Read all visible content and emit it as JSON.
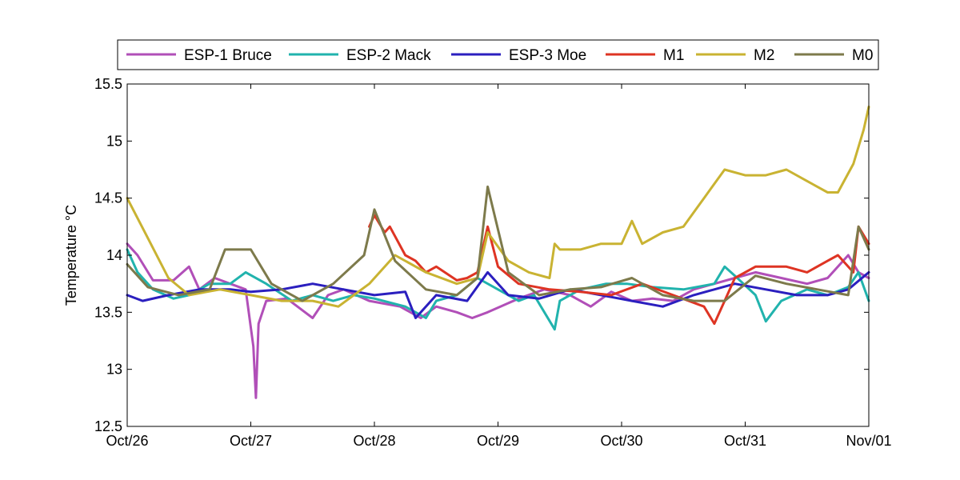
{
  "chart_data": {
    "type": "line",
    "xlabel": "",
    "ylabel": "Temperature °C",
    "ylim": [
      12.5,
      15.5
    ],
    "xlim": [
      "2013-10-26",
      "2013-11-01"
    ],
    "x_ticks": [
      "Oct/26",
      "Oct/27",
      "Oct/28",
      "Oct/29",
      "Oct/30",
      "Oct/31",
      "Nov/01"
    ],
    "y_ticks": [
      "12.5",
      "13",
      "13.5",
      "14",
      "14.5",
      "15",
      "15.5"
    ],
    "grid": false,
    "legend_position": "top",
    "series": [
      {
        "name": "ESP-1 Bruce",
        "color": "#b14fb8",
        "x": [
          "2013-10-26 00:00",
          "2013-10-26 02:00",
          "2013-10-26 05:00",
          "2013-10-26 09:00",
          "2013-10-26 12:00",
          "2013-10-26 14:00",
          "2013-10-26 17:00",
          "2013-10-26 20:00",
          "2013-10-26 23:00",
          "2013-10-27 00:30",
          "2013-10-27 01:00",
          "2013-10-27 01:30",
          "2013-10-27 03:00",
          "2013-10-27 07:00",
          "2013-10-27 12:00",
          "2013-10-27 15:00",
          "2013-10-27 18:00",
          "2013-10-27 23:00",
          "2013-10-28 05:00",
          "2013-10-28 09:00",
          "2013-10-28 12:00",
          "2013-10-28 16:00",
          "2013-10-28 19:00",
          "2013-10-28 22:00",
          "2013-10-29 04:00",
          "2013-10-29 09:00",
          "2013-10-29 14:00",
          "2013-10-29 18:00",
          "2013-10-29 22:00",
          "2013-10-30 02:00",
          "2013-10-30 06:00",
          "2013-10-30 10:00",
          "2013-10-30 14:00",
          "2013-10-30 18:00",
          "2013-10-30 22:00",
          "2013-10-31 02:00",
          "2013-10-31 07:00",
          "2013-10-31 12:00",
          "2013-10-31 16:00",
          "2013-10-31 20:00",
          "2013-10-31 22:00",
          "2013-11-01 00:00"
        ],
        "y": [
          14.1,
          14.0,
          13.78,
          13.78,
          13.9,
          13.7,
          13.8,
          13.75,
          13.7,
          13.2,
          12.75,
          13.4,
          13.6,
          13.62,
          13.45,
          13.65,
          13.7,
          13.6,
          13.55,
          13.45,
          13.55,
          13.5,
          13.45,
          13.5,
          13.62,
          13.7,
          13.65,
          13.55,
          13.68,
          13.6,
          13.62,
          13.6,
          13.7,
          13.75,
          13.8,
          13.85,
          13.8,
          13.75,
          13.8,
          14.0,
          13.85,
          13.8
        ]
      },
      {
        "name": "ESP-2 Mack",
        "color": "#21b3ad",
        "x": [
          "2013-10-26 00:00",
          "2013-10-26 02:00",
          "2013-10-26 05:00",
          "2013-10-26 09:00",
          "2013-10-26 12:00",
          "2013-10-26 16:00",
          "2013-10-26 20:00",
          "2013-10-26 23:00",
          "2013-10-27 03:00",
          "2013-10-27 08:00",
          "2013-10-27 12:00",
          "2013-10-27 16:00",
          "2013-10-27 20:00",
          "2013-10-28 00:00",
          "2013-10-28 06:00",
          "2013-10-28 10:00",
          "2013-10-28 12:00",
          "2013-10-28 16:00",
          "2013-10-28 20:00",
          "2013-10-29 00:00",
          "2013-10-29 04:00",
          "2013-10-29 07:00",
          "2013-10-29 11:00",
          "2013-10-29 12:00",
          "2013-10-29 16:00",
          "2013-10-29 21:00",
          "2013-10-30 01:00",
          "2013-10-30 06:00",
          "2013-10-30 12:00",
          "2013-10-30 18:00",
          "2013-10-30 20:00",
          "2013-10-30 22:00",
          "2013-10-31 02:00",
          "2013-10-31 04:00",
          "2013-10-31 07:00",
          "2013-10-31 12:00",
          "2013-10-31 16:00",
          "2013-10-31 20:00",
          "2013-10-31 22:00",
          "2013-11-01 00:00"
        ],
        "y": [
          14.05,
          13.85,
          13.7,
          13.62,
          13.65,
          13.75,
          13.75,
          13.85,
          13.75,
          13.6,
          13.65,
          13.6,
          13.65,
          13.62,
          13.55,
          13.45,
          13.6,
          13.65,
          13.8,
          13.7,
          13.6,
          13.65,
          13.35,
          13.6,
          13.7,
          13.75,
          13.75,
          13.72,
          13.7,
          13.75,
          13.9,
          13.82,
          13.65,
          13.42,
          13.6,
          13.7,
          13.65,
          13.72,
          13.85,
          13.6
        ]
      },
      {
        "name": "ESP-3 Moe",
        "color": "#2b1fbf",
        "x": [
          "2013-10-26 00:00",
          "2013-10-26 03:00",
          "2013-10-26 08:00",
          "2013-10-26 14:00",
          "2013-10-26 20:00",
          "2013-10-27 00:00",
          "2013-10-27 06:00",
          "2013-10-27 12:00",
          "2013-10-27 18:00",
          "2013-10-28 00:00",
          "2013-10-28 06:00",
          "2013-10-28 08:00",
          "2013-10-28 12:00",
          "2013-10-28 18:00",
          "2013-10-28 22:00",
          "2013-10-29 02:00",
          "2013-10-29 08:00",
          "2013-10-29 14:00",
          "2013-10-29 20:00",
          "2013-10-30 02:00",
          "2013-10-30 08:00",
          "2013-10-30 14:00",
          "2013-10-30 18:00",
          "2013-10-30 22:00",
          "2013-10-31 04:00",
          "2013-10-31 10:00",
          "2013-10-31 16:00",
          "2013-10-31 20:00",
          "2013-11-01 00:00"
        ],
        "y": [
          13.65,
          13.6,
          13.65,
          13.7,
          13.7,
          13.68,
          13.7,
          13.75,
          13.7,
          13.65,
          13.68,
          13.45,
          13.65,
          13.6,
          13.85,
          13.65,
          13.62,
          13.7,
          13.65,
          13.6,
          13.55,
          13.65,
          13.7,
          13.75,
          13.7,
          13.65,
          13.65,
          13.7,
          13.85
        ]
      },
      {
        "name": "M1",
        "color": "#de3423",
        "x": [
          "2013-10-27 23:00",
          "2013-10-28 00:00",
          "2013-10-28 02:00",
          "2013-10-28 03:00",
          "2013-10-28 06:00",
          "2013-10-28 08:00",
          "2013-10-28 10:00",
          "2013-10-28 12:00",
          "2013-10-28 16:00",
          "2013-10-28 18:00",
          "2013-10-28 20:00",
          "2013-10-28 22:00",
          "2013-10-29 00:00",
          "2013-10-29 04:00",
          "2013-10-29 10:00",
          "2013-10-29 16:00",
          "2013-10-29 22:00",
          "2013-10-30 04:00",
          "2013-10-30 10:00",
          "2013-10-30 16:00",
          "2013-10-30 18:00",
          "2013-10-30 20:00",
          "2013-10-30 22:00",
          "2013-10-31 02:00",
          "2013-10-31 08:00",
          "2013-10-31 12:00",
          "2013-10-31 16:00",
          "2013-10-31 18:00",
          "2013-10-31 21:00",
          "2013-10-31 22:00",
          "2013-11-01 00:00"
        ],
        "y": [
          14.25,
          14.35,
          14.2,
          14.25,
          14.0,
          13.95,
          13.85,
          13.9,
          13.78,
          13.8,
          13.85,
          14.25,
          13.9,
          13.75,
          13.7,
          13.68,
          13.65,
          13.75,
          13.65,
          13.55,
          13.4,
          13.6,
          13.8,
          13.9,
          13.9,
          13.85,
          13.95,
          14.0,
          13.85,
          14.25,
          14.1
        ]
      },
      {
        "name": "M2",
        "color": "#c9b332",
        "x": [
          "2013-10-26 00:00",
          "2013-10-26 04:00",
          "2013-10-26 08:00",
          "2013-10-26 12:00",
          "2013-10-26 18:00",
          "2013-10-27 00:00",
          "2013-10-27 06:00",
          "2013-10-27 12:00",
          "2013-10-27 17:00",
          "2013-10-27 23:00",
          "2013-10-28 04:00",
          "2013-10-28 10:00",
          "2013-10-28 16:00",
          "2013-10-28 20:00",
          "2013-10-28 22:00",
          "2013-10-29 02:00",
          "2013-10-29 06:00",
          "2013-10-29 10:00",
          "2013-10-29 11:00",
          "2013-10-29 12:00",
          "2013-10-29 16:00",
          "2013-10-29 20:00",
          "2013-10-30 00:00",
          "2013-10-30 02:00",
          "2013-10-30 04:00",
          "2013-10-30 08:00",
          "2013-10-30 12:00",
          "2013-10-30 16:00",
          "2013-10-30 20:00",
          "2013-10-31 00:00",
          "2013-10-31 04:00",
          "2013-10-31 08:00",
          "2013-10-31 12:00",
          "2013-10-31 16:00",
          "2013-10-31 18:00",
          "2013-10-31 21:00",
          "2013-10-31 23:00",
          "2013-11-01 00:00"
        ],
        "y": [
          14.5,
          14.15,
          13.8,
          13.65,
          13.7,
          13.65,
          13.6,
          13.6,
          13.55,
          13.75,
          14.0,
          13.85,
          13.75,
          13.8,
          14.2,
          13.95,
          13.85,
          13.8,
          14.1,
          14.05,
          14.05,
          14.1,
          14.1,
          14.3,
          14.1,
          14.2,
          14.25,
          14.5,
          14.75,
          14.7,
          14.7,
          14.75,
          14.65,
          14.55,
          14.55,
          14.8,
          15.1,
          15.3
        ]
      },
      {
        "name": "M0",
        "color": "#7d7a4b",
        "x": [
          "2013-10-26 00:00",
          "2013-10-26 04:00",
          "2013-10-26 10:00",
          "2013-10-26 16:00",
          "2013-10-26 19:00",
          "2013-10-27 00:00",
          "2013-10-27 04:00",
          "2013-10-27 10:00",
          "2013-10-27 16:00",
          "2013-10-27 22:00",
          "2013-10-28 00:00",
          "2013-10-28 04:00",
          "2013-10-28 10:00",
          "2013-10-28 16:00",
          "2013-10-28 20:00",
          "2013-10-28 22:00",
          "2013-10-29 02:00",
          "2013-10-29 08:00",
          "2013-10-29 14:00",
          "2013-10-29 20:00",
          "2013-10-30 02:00",
          "2013-10-30 08:00",
          "2013-10-30 14:00",
          "2013-10-30 20:00",
          "2013-10-31 02:00",
          "2013-10-31 08:00",
          "2013-10-31 14:00",
          "2013-10-31 20:00",
          "2013-10-31 22:00",
          "2013-11-01 00:00"
        ],
        "y": [
          13.92,
          13.72,
          13.65,
          13.7,
          14.05,
          14.05,
          13.75,
          13.6,
          13.75,
          14.0,
          14.4,
          13.95,
          13.7,
          13.65,
          13.8,
          14.6,
          13.85,
          13.65,
          13.7,
          13.72,
          13.8,
          13.65,
          13.6,
          13.6,
          13.82,
          13.75,
          13.7,
          13.65,
          14.25,
          14.05
        ]
      }
    ]
  }
}
